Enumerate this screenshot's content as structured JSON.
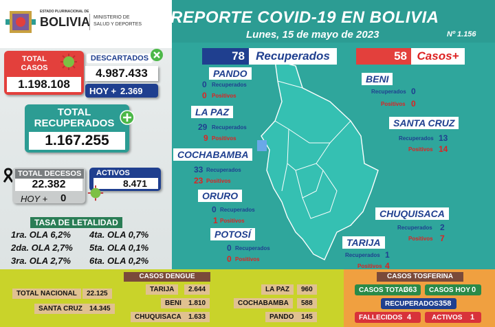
{
  "header": {
    "logo_top": "ESTADO PLURINACIONAL DE",
    "logo_country": "BOLIVIA",
    "ministry_line1": "MINISTERIO DE",
    "ministry_line2": "SALUD Y DEPORTES",
    "title": "REPORTE COVID-19 EN BOLIVIA",
    "date": "Lunes, 15 de mayo de 2023",
    "report_no": "Nº 1.156"
  },
  "summary": {
    "total_casos_label": "TOTAL CASOS",
    "total_casos": "1.198.108",
    "descartados_label": "DESCARTADOS",
    "descartados": "4.987.433",
    "hoy_label": "HOY +",
    "descartados_hoy": "2.369",
    "recuperados_label": "TOTAL RECUPERADOS",
    "recuperados": "1.167.255",
    "decesos_label": "TOTAL DECESOS",
    "decesos": "22.382",
    "decesos_hoy_label": "HOY +",
    "decesos_hoy": "0",
    "activos_label": "ACTIVOS",
    "activos": "8.471"
  },
  "letalidad": {
    "title": "TASA DE LETALIDAD",
    "rows": [
      [
        "1ra. OLA 6,2%",
        "4ta. OLA 0,7%"
      ],
      [
        "2da. OLA 2,7%",
        "5ta. OLA 0,1%"
      ],
      [
        "3ra. OLA 2,7%",
        "6ta. OLA 0,2%"
      ]
    ]
  },
  "map": {
    "recuperados_count": "78",
    "recuperados_label": "Recuperados",
    "casos_count": "58",
    "casos_label": "Casos+",
    "rec_word": "Recuperados",
    "pos_word": "Positivos",
    "departments": [
      {
        "name": "PANDO",
        "recuperados": "0",
        "positivos": "0"
      },
      {
        "name": "LA PAZ",
        "recuperados": "29",
        "positivos": "9"
      },
      {
        "name": "COCHABAMBA",
        "recuperados": "33",
        "positivos": "23"
      },
      {
        "name": "ORURO",
        "recuperados": "0",
        "positivos": "1"
      },
      {
        "name": "POTOSÍ",
        "recuperados": "0",
        "positivos": "0"
      },
      {
        "name": "BENI",
        "recuperados": "0",
        "positivos": "0"
      },
      {
        "name": "SANTA CRUZ",
        "recuperados": "13",
        "positivos": "14"
      },
      {
        "name": "CHUQUISACA",
        "recuperados": "2",
        "positivos": "7"
      },
      {
        "name": "TARIJA",
        "recuperados": "1",
        "positivos": "4"
      }
    ]
  },
  "dengue": {
    "title": "CASOS DENGUE",
    "total_nacional_label": "TOTAL NACIONAL",
    "total_nacional": "22.125",
    "santa_cruz_label": "SANTA CRUZ",
    "santa_cruz": "14.345",
    "items": [
      {
        "dept": "TARIJA",
        "value": "2.644"
      },
      {
        "dept": "BENI",
        "value": "1.810"
      },
      {
        "dept": "CHUQUISACA",
        "value": "1.633"
      },
      {
        "dept": "LA PAZ",
        "value": "960"
      },
      {
        "dept": "COCHABAMBA",
        "value": "588"
      },
      {
        "dept": "PANDO",
        "value": "145"
      }
    ]
  },
  "tosferina": {
    "title": "CASOS TOSFERINA",
    "total_label": "CASOS TOTAL",
    "total": "363",
    "hoy_label": "CASOS HOY",
    "hoy": "0",
    "recuperados_label": "RECUPERADOS",
    "recuperados": "358",
    "fallecidos_label": "FALLECIDOS",
    "fallecidos": "4",
    "activos_label": "ACTIVOS",
    "activos": "1"
  },
  "colors": {
    "teal": "#2c9c93",
    "red": "#e3403c",
    "navy": "#1f3f8f",
    "green": "#4cb848"
  },
  "icons": [
    "virus-icon",
    "close-icon",
    "plus-icon",
    "mourning-ribbon-icon"
  ]
}
